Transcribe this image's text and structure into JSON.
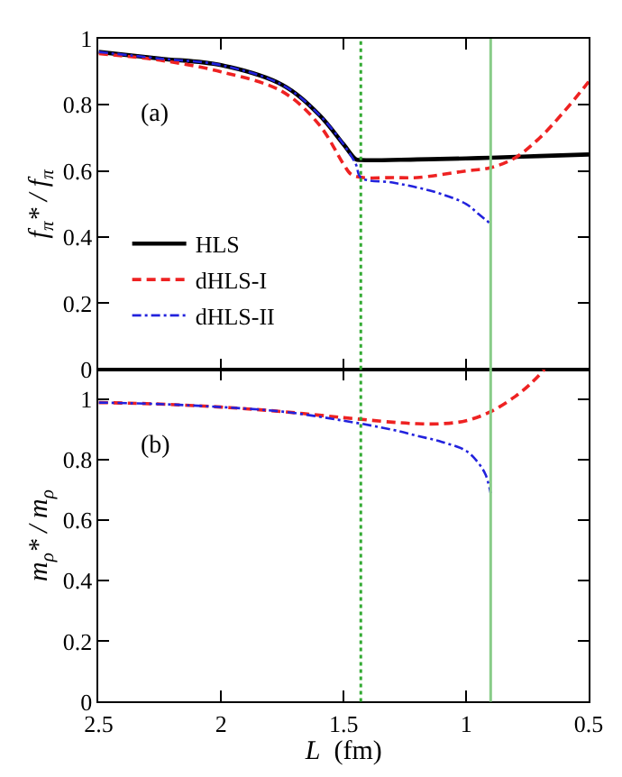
{
  "chart_data": [
    {
      "type": "line",
      "ylabel": "f$_{π}$* / f$_{π}$",
      "annotations": [
        "(a)"
      ],
      "xlim": [
        2.5,
        0.5
      ],
      "xticks": [
        2.5,
        2,
        1.5,
        1,
        0.5
      ],
      "ylim": [
        0,
        1
      ],
      "yticks": [
        0,
        0.2,
        0.4,
        0.6,
        0.8,
        1
      ],
      "tick_labels": "y",
      "legend": "bottom left",
      "ref_lines": [
        {
          "axis": "x",
          "value": 1.43,
          "color": "#33aa33",
          "line_style": "dotted"
        },
        {
          "axis": "x",
          "value": 0.9,
          "color": "#88cc88",
          "line_style": "solid"
        }
      ],
      "series": [
        {
          "name": "HLS",
          "color": "#000000",
          "line_style": "solid",
          "x": [
            2.5,
            2.25,
            2.0,
            1.75,
            1.6,
            1.5,
            1.45,
            1.43,
            1.2,
            1.0,
            0.9,
            0.7,
            0.5
          ],
          "values": [
            0.96,
            0.94,
            0.92,
            0.86,
            0.77,
            0.68,
            0.635,
            0.633,
            0.635,
            0.638,
            0.64,
            0.645,
            0.65
          ]
        },
        {
          "name": "dHLS-I",
          "color": "#ee2222",
          "line_style": "dashed",
          "x": [
            2.5,
            2.25,
            2.0,
            1.75,
            1.6,
            1.5,
            1.47,
            1.42,
            1.3,
            1.2,
            1.0,
            0.9,
            0.8,
            0.7,
            0.6,
            0.5
          ],
          "values": [
            0.955,
            0.935,
            0.9,
            0.84,
            0.74,
            0.62,
            0.59,
            0.58,
            0.58,
            0.58,
            0.6,
            0.61,
            0.64,
            0.7,
            0.78,
            0.87
          ]
        },
        {
          "name": "dHLS-II",
          "color": "#2222dd",
          "line_style": "dashdot",
          "x": [
            2.5,
            2.25,
            2.0,
            1.75,
            1.6,
            1.5,
            1.45,
            1.43,
            1.3,
            1.2,
            1.1,
            1.0,
            0.95,
            0.9
          ],
          "values": [
            0.96,
            0.94,
            0.92,
            0.86,
            0.77,
            0.68,
            0.62,
            0.58,
            0.565,
            0.55,
            0.53,
            0.5,
            0.47,
            0.44
          ]
        }
      ]
    },
    {
      "type": "line",
      "ylabel": "m$_{ρ}$* / m$_{ρ}$",
      "xlabel": "L  (fm)",
      "annotations": [
        "(b)"
      ],
      "xlim": [
        2.5,
        0.5
      ],
      "xticks": [
        2.5,
        2,
        1.5,
        1,
        0.5
      ],
      "ylim": [
        0,
        1.1
      ],
      "yticks": [
        0,
        0.2,
        0.4,
        0.6,
        0.8,
        1
      ],
      "ref_lines": [
        {
          "axis": "x",
          "value": 1.43,
          "color": "#33aa33",
          "line_style": "dotted"
        },
        {
          "axis": "x",
          "value": 0.9,
          "color": "#88cc88",
          "line_style": "solid"
        }
      ],
      "series": [
        {
          "color": "#ee2222",
          "line_style": "dashed",
          "x": [
            2.5,
            2.25,
            2.0,
            1.75,
            1.5,
            1.3,
            1.2,
            1.1,
            1.0,
            0.9,
            0.8,
            0.74,
            0.68
          ],
          "values": [
            0.99,
            0.985,
            0.975,
            0.96,
            0.94,
            0.925,
            0.92,
            0.92,
            0.93,
            0.96,
            1.01,
            1.05,
            1.1
          ]
        },
        {
          "color": "#2222dd",
          "line_style": "dashdot",
          "x": [
            2.5,
            2.25,
            2.0,
            1.75,
            1.5,
            1.3,
            1.2,
            1.1,
            1.0,
            0.95,
            0.92,
            0.9
          ],
          "values": [
            0.99,
            0.985,
            0.975,
            0.96,
            0.93,
            0.9,
            0.88,
            0.86,
            0.83,
            0.79,
            0.75,
            0.69
          ]
        }
      ]
    }
  ]
}
